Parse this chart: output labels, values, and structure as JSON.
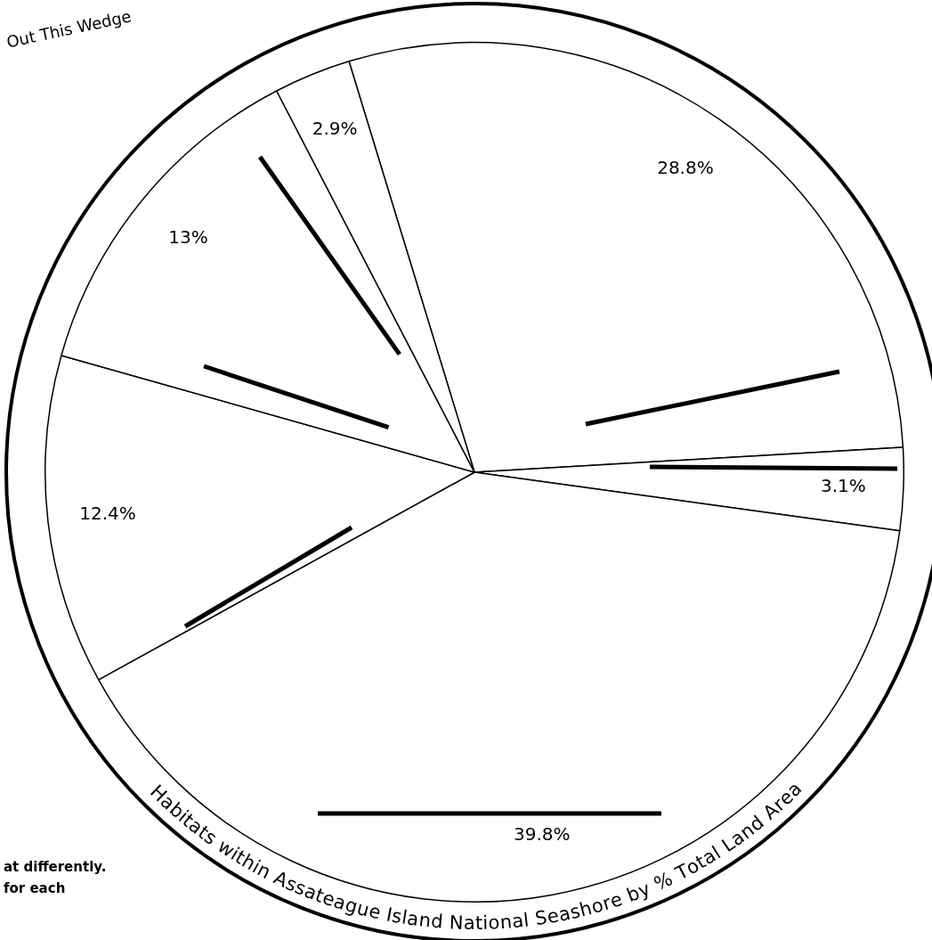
{
  "chart_data": {
    "type": "pie",
    "title": "Habitats within Assateague Island National Seashore by % Total Land Area",
    "categories": [
      null,
      null,
      null,
      null,
      null,
      null
    ],
    "values": [
      28.8,
      3.1,
      39.8,
      12.4,
      13,
      2.9
    ],
    "colors": [
      "#ffffff",
      "#ffffff",
      "#ffffff",
      "#ffffff",
      "#ffffff",
      "#ffffff"
    ],
    "value_labels": [
      "28.8%",
      "3.1%",
      "39.8%",
      "12.4%",
      "13%",
      "2.9%"
    ],
    "legend": false,
    "annotations": [
      "Out This Wedge",
      "at differently.",
      "for each"
    ]
  }
}
